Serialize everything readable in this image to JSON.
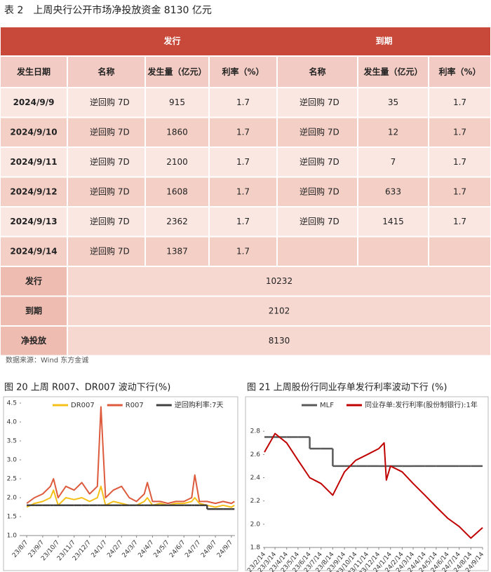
{
  "table": {
    "title": "表 2　上周央行公开市场净投放资金 8130 亿元",
    "groups": [
      "发行",
      "到期"
    ],
    "columns": [
      "发生日期",
      "名称",
      "发生量（亿元）",
      "利率（%）",
      "名称",
      "发生量（亿元）",
      "利率（%）"
    ],
    "rows": [
      [
        "2024/9/9",
        "逆回购 7D",
        915,
        1.7,
        "逆回购 7D",
        35,
        1.7
      ],
      [
        "2024/9/10",
        "逆回购 7D",
        1860,
        1.7,
        "逆回购 7D",
        12,
        1.7
      ],
      [
        "2024/9/11",
        "逆回购 7D",
        2100,
        1.7,
        "逆回购 7D",
        7,
        1.7
      ],
      [
        "2024/9/12",
        "逆回购 7D",
        1608,
        1.7,
        "逆回购 7D",
        633,
        1.7
      ],
      [
        "2024/9/13",
        "逆回购 7D",
        2362,
        1.7,
        "逆回购 7D",
        1415,
        1.7
      ],
      [
        "2024/9/14",
        "逆回购 7D",
        1387,
        1.7
      ]
    ],
    "summary": [
      [
        "发行",
        10232
      ],
      [
        "到期",
        2102
      ],
      [
        "净投放",
        8130
      ]
    ],
    "source": "数据来源：Wind 东方金诚"
  },
  "chart_data": [
    {
      "type": "line",
      "title": "图 20 上周 R007、DR007 波动下行(%)",
      "x": [
        "23/8/7",
        "23/8/22",
        "23/9/7",
        "23/9/22",
        "23/9/28",
        "23/10/7",
        "23/10/22",
        "23/11/7",
        "23/11/22",
        "23/12/7",
        "23/12/22",
        "23/12/29",
        "24/1/7",
        "24/1/22",
        "24/2/7",
        "24/2/22",
        "24/3/7",
        "24/3/22",
        "24/3/28",
        "24/4/7",
        "24/4/22",
        "24/5/7",
        "24/5/22",
        "24/6/7",
        "24/6/22",
        "24/6/28",
        "24/7/7",
        "24/7/22",
        "24/8/7",
        "24/8/22",
        "24/9/7",
        "24/9/13"
      ],
      "xlim": [
        "23/7/27",
        "24/9/14"
      ],
      "xticks": [
        "23/8/7",
        "23/9/7",
        "23/10/7",
        "23/11/7",
        "23/12/7",
        "24/1/7",
        "24/2/7",
        "24/3/7",
        "24/4/7",
        "24/5/7",
        "24/6/7",
        "24/7/7",
        "24/8/7",
        "24/9/7"
      ],
      "ylim": [
        1,
        4.5
      ],
      "yticks": [
        {
          "value": 1,
          "label": "1.0"
        },
        1.5,
        {
          "value": 2,
          "label": "2.0"
        },
        2.5,
        {
          "value": 3,
          "label": "3.0"
        },
        3.5,
        {
          "value": 4,
          "label": "4.0"
        },
        4.5
      ],
      "series": [
        {
          "name": "DR007",
          "color": "#f5c018",
          "values": [
            1.75,
            1.85,
            1.9,
            2.0,
            2.2,
            1.8,
            2.0,
            1.95,
            2.0,
            1.9,
            2.0,
            2.3,
            1.8,
            1.9,
            1.85,
            1.8,
            1.8,
            1.9,
            2.0,
            1.8,
            1.85,
            1.8,
            1.85,
            1.85,
            1.9,
            2.0,
            1.85,
            1.8,
            1.75,
            1.8,
            1.75,
            1.8
          ]
        },
        {
          "name": "R007",
          "color": "#dd5a3c",
          "values": [
            1.85,
            2.0,
            2.1,
            2.3,
            2.5,
            2.0,
            2.3,
            2.2,
            2.4,
            2.1,
            2.3,
            4.4,
            2.0,
            2.2,
            2.3,
            2.0,
            1.9,
            2.1,
            2.4,
            1.9,
            1.9,
            1.85,
            1.9,
            1.9,
            2.0,
            2.6,
            1.9,
            1.9,
            1.85,
            1.9,
            1.85,
            1.9
          ]
        },
        {
          "name": "逆回购利率:7天",
          "color": "#404040",
          "step": true,
          "values": [
            1.8,
            1.8,
            1.8,
            1.8,
            1.8,
            1.8,
            1.8,
            1.8,
            1.8,
            1.8,
            1.8,
            1.8,
            1.8,
            1.8,
            1.8,
            1.8,
            1.8,
            1.8,
            1.8,
            1.8,
            1.8,
            1.8,
            1.8,
            1.8,
            1.8,
            1.8,
            1.8,
            1.7,
            1.7,
            1.7,
            1.7,
            1.7
          ]
        }
      ]
    },
    {
      "type": "line",
      "title": "图 21 上周股份行同业存单发行利率波动下行 (%)",
      "x": [
        "23/2/14",
        "23/3/14",
        "23/4/14",
        "23/5/14",
        "23/6/14",
        "23/7/14",
        "23/8/14",
        "23/9/14",
        "23/10/14",
        "23/11/14",
        "23/12/14",
        "23/12/28",
        "24/1/3",
        "24/1/14",
        "24/2/14",
        "24/3/14",
        "24/4/14",
        "24/5/14",
        "24/6/14",
        "24/7/14",
        "24/8/14",
        "24/9/14"
      ],
      "xlim": [
        "23/2/14",
        "24/9/14"
      ],
      "xticks": [
        "23/2/14",
        "23/3/14",
        "23/4/14",
        "23/5/14",
        "23/6/14",
        "23/7/14",
        "23/8/14",
        "23/9/14",
        "23/10/14",
        "23/11/14",
        "23/12/14",
        "24/1/14",
        "24/2/14",
        "24/3/14",
        "24/4/14",
        "24/5/14",
        "24/6/14",
        "24/7/14",
        "24/8/14",
        "24/9/14"
      ],
      "ylim": [
        1.8,
        3.0
      ],
      "yticks": [
        1.8,
        {
          "value": 2,
          "label": "2.0"
        },
        2.2,
        2.4,
        2.6,
        2.8
      ],
      "series": [
        {
          "name": "MLF",
          "color": "#595959",
          "step": true,
          "values": [
            2.75,
            2.75,
            2.75,
            2.75,
            2.65,
            2.65,
            2.5,
            2.5,
            2.5,
            2.5,
            2.5,
            2.5,
            2.5,
            2.5,
            2.5,
            2.5,
            2.5,
            2.5,
            2.5,
            2.5,
            2.5,
            2.5
          ]
        },
        {
          "name": "同业存单:发行利率(股份制银行):1年",
          "color": "#c00000",
          "values": [
            2.62,
            2.78,
            2.7,
            2.55,
            2.4,
            2.35,
            2.25,
            2.45,
            2.55,
            2.6,
            2.65,
            2.7,
            2.38,
            2.5,
            2.45,
            2.35,
            2.25,
            2.15,
            2.05,
            1.98,
            1.88,
            1.97
          ]
        }
      ]
    }
  ]
}
